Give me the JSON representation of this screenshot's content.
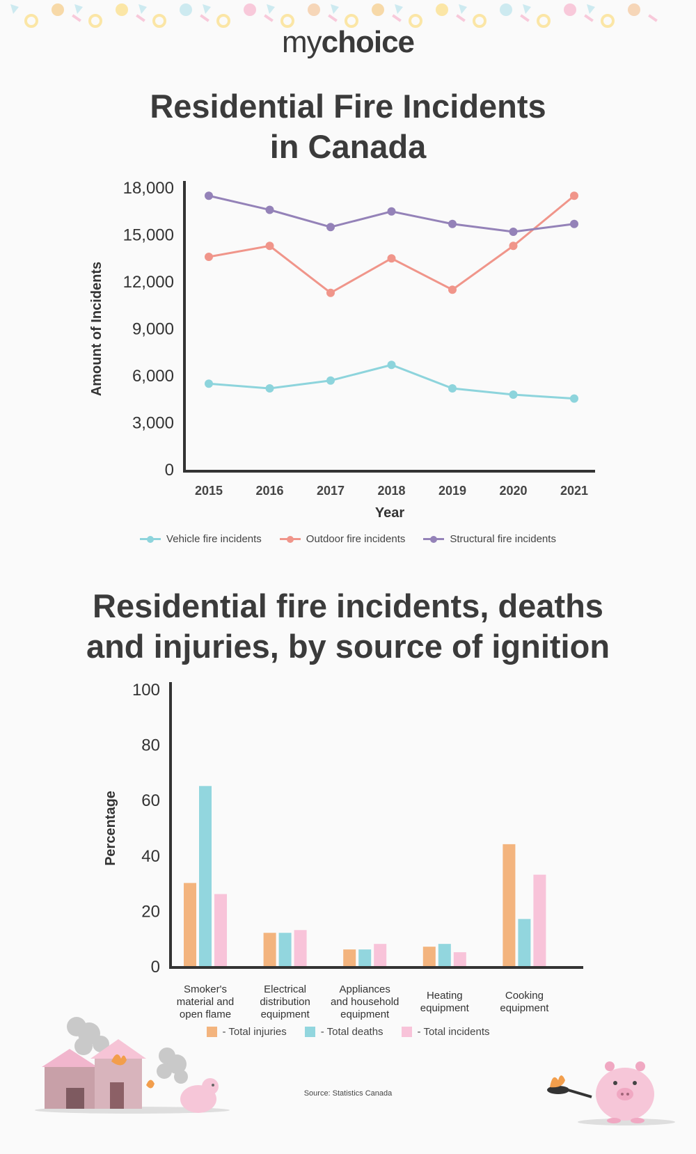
{
  "brand": {
    "logo_my": "my",
    "logo_choice": "choice"
  },
  "chart1": {
    "title_line1": "Residential Fire Incidents",
    "title_line2": "in Canada"
  },
  "chart2": {
    "title_line1": "Residential fire incidents, deaths",
    "title_line2": "and injuries, by source of ignition"
  },
  "source": "Source: Statistics Canada",
  "chart_data": [
    {
      "type": "line",
      "title": "Residential Fire Incidents in Canada",
      "xlabel": "Year",
      "ylabel": "Amount of Incidents",
      "x": [
        "2015",
        "2016",
        "2017",
        "2018",
        "2019",
        "2020",
        "2021"
      ],
      "ylim": [
        0,
        18000
      ],
      "yticks": [
        "0",
        "3,000",
        "6,000",
        "9,000",
        "12,000",
        "15,000",
        "18,000"
      ],
      "legend_position": "bottom",
      "grid": false,
      "series": [
        {
          "name": "Vehicle fire incidents",
          "color": "#8dd4dc",
          "values": [
            5500,
            5200,
            5700,
            6700,
            5200,
            4800,
            4550
          ]
        },
        {
          "name": "Outdoor fire incidents",
          "color": "#f0958a",
          "values": [
            13600,
            14300,
            11300,
            13500,
            11500,
            14300,
            17500
          ]
        },
        {
          "name": "Structural fire incidents",
          "color": "#9482b8",
          "values": [
            17500,
            16600,
            15500,
            16500,
            15700,
            15200,
            15700
          ]
        }
      ]
    },
    {
      "type": "bar",
      "title": "Residential fire incidents, deaths and injuries, by source of ignition",
      "xlabel": "",
      "ylabel": "Percentage",
      "categories": [
        [
          "Smoker's",
          "material and",
          "open flame"
        ],
        [
          "Electrical",
          "distribution",
          "equipment"
        ],
        [
          "Appliances",
          "and household",
          "equipment"
        ],
        [
          "Heating",
          "equipment"
        ],
        [
          "Cooking",
          "equipment"
        ]
      ],
      "ylim": [
        0,
        100
      ],
      "yticks": [
        "0",
        "20",
        "40",
        "60",
        "80",
        "100"
      ],
      "legend_position": "bottom",
      "grid": false,
      "series": [
        {
          "name": "- Total injuries",
          "color": "#f3b47e",
          "values": [
            30,
            12,
            6,
            7,
            44
          ]
        },
        {
          "name": "- Total deaths",
          "color": "#92d6de",
          "values": [
            65,
            12,
            6,
            8,
            17
          ]
        },
        {
          "name": "- Total incidents",
          "color": "#f8c3d9",
          "values": [
            26,
            13,
            8,
            5,
            33
          ]
        }
      ]
    }
  ]
}
